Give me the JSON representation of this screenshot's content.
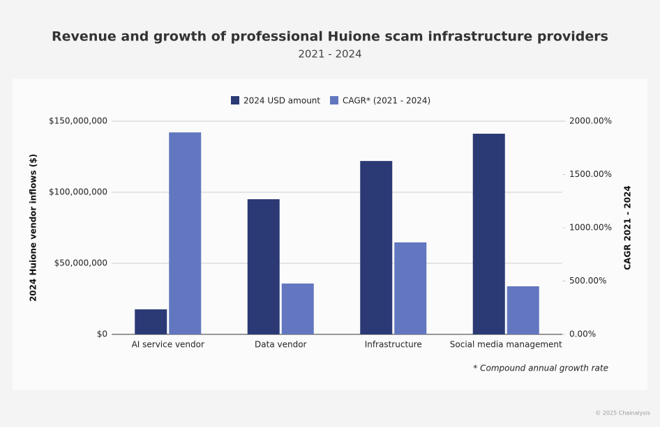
{
  "chart_data": {
    "type": "bar",
    "title": "Revenue and growth of professional Huione scam infrastructure providers",
    "subtitle": "2021 - 2024",
    "categories": [
      "AI service vendor",
      "Data vendor",
      "Infrastructure",
      "Social media management"
    ],
    "series": [
      {
        "name": "2024 USD amount",
        "color": "#2b3a75",
        "values": [
          17600000,
          95100000,
          122000000,
          141200000
        ]
      },
      {
        "name": "CAGR* (2021 - 2024)",
        "color": "#6277bf",
        "axis": "y2",
        "values": [
          1895,
          477,
          863,
          451
        ]
      }
    ],
    "ylabel": "2024 Huione vendor inflows ($)",
    "y2label": "CAGR 2021 - 2024",
    "ylim": [
      0,
      150000000
    ],
    "yticks": [
      {
        "value": 0,
        "label": "$0"
      },
      {
        "value": 50000000,
        "label": "$50,000,000"
      },
      {
        "value": 100000000,
        "label": "$100,000,000"
      },
      {
        "value": 150000000,
        "label": "$150,000,000"
      }
    ],
    "y2lim": [
      0,
      2000
    ],
    "y2ticks": [
      {
        "value": 0,
        "label": "0.00%"
      },
      {
        "value": 500,
        "label": "500.00%"
      },
      {
        "value": 1000,
        "label": "1000.00%"
      },
      {
        "value": 1500,
        "label": "1500.00%"
      },
      {
        "value": 2000,
        "label": "2000.00%"
      }
    ],
    "grid": true,
    "legend": "top",
    "footnote": "* Compound annual growth rate",
    "source": "© 2025 Chainalysis"
  }
}
